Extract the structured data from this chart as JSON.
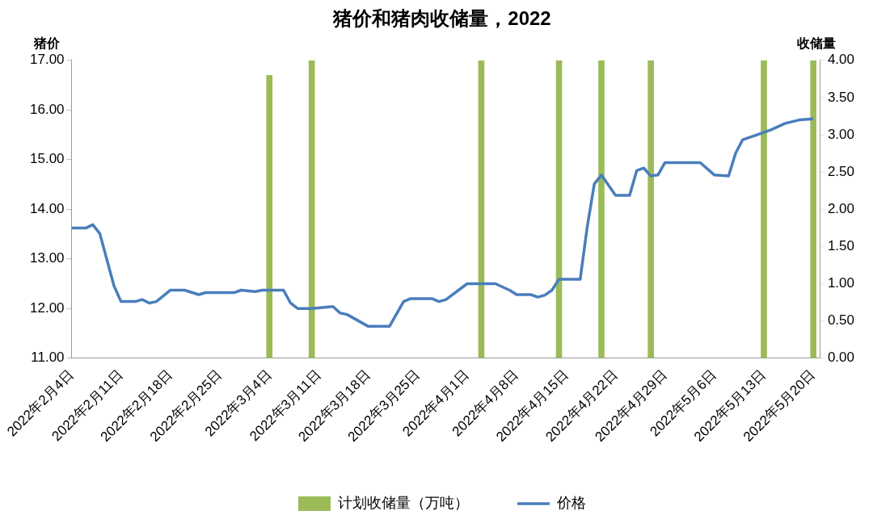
{
  "chart_data": {
    "type": "line",
    "title": "猪价和猪肉收储量，2022",
    "ylabel": "猪价",
    "y2label": "收储量",
    "xlim": [
      "2022-02-04",
      "2022-05-21"
    ],
    "xticks": [
      {
        "value": "2022-02-04",
        "label": "2022年2月4日"
      },
      {
        "value": "2022-02-11",
        "label": "2022年2月11日"
      },
      {
        "value": "2022-02-18",
        "label": "2022年2月18日"
      },
      {
        "value": "2022-02-25",
        "label": "2022年2月25日"
      },
      {
        "value": "2022-03-04",
        "label": "2022年3月4日"
      },
      {
        "value": "2022-03-11",
        "label": "2022年3月11日"
      },
      {
        "value": "2022-03-18",
        "label": "2022年3月18日"
      },
      {
        "value": "2022-03-25",
        "label": "2022年3月25日"
      },
      {
        "value": "2022-04-01",
        "label": "2022年4月1日"
      },
      {
        "value": "2022-04-08",
        "label": "2022年4月8日"
      },
      {
        "value": "2022-04-15",
        "label": "2022年4月15日"
      },
      {
        "value": "2022-04-22",
        "label": "2022年4月22日"
      },
      {
        "value": "2022-04-29",
        "label": "2022年4月29日"
      },
      {
        "value": "2022-05-06",
        "label": "2022年5月6日"
      },
      {
        "value": "2022-05-13",
        "label": "2022年5月13日"
      },
      {
        "value": "2022-05-20",
        "label": "2022年5月20日"
      }
    ],
    "ylim": [
      11,
      17
    ],
    "yticks": [
      {
        "value": 11,
        "label": "11.00"
      },
      {
        "value": 12,
        "label": "12.00"
      },
      {
        "value": 13,
        "label": "13.00"
      },
      {
        "value": 14,
        "label": "14.00"
      },
      {
        "value": 15,
        "label": "15.00"
      },
      {
        "value": 16,
        "label": "16.00"
      },
      {
        "value": 17,
        "label": "17.00"
      }
    ],
    "y2lim": [
      0,
      4
    ],
    "y2ticks": [
      {
        "value": 0,
        "label": "0.00"
      },
      {
        "value": 0.5,
        "label": "0.50"
      },
      {
        "value": 1,
        "label": "1.00"
      },
      {
        "value": 1.5,
        "label": "1.50"
      },
      {
        "value": 2,
        "label": "2.00"
      },
      {
        "value": 2.5,
        "label": "2.50"
      },
      {
        "value": 3,
        "label": "3.00"
      },
      {
        "value": 3.5,
        "label": "3.50"
      },
      {
        "value": 4,
        "label": "4.00"
      }
    ],
    "grid": false,
    "legend": "bottom",
    "marker": "none",
    "line_style": "solid",
    "series": [
      {
        "name": "计划收储量（万吨）",
        "type": "bar",
        "axis": "y2",
        "color": "#9bbb59",
        "x": [
          "2022-03-04",
          "2022-03-10",
          "2022-04-03",
          "2022-04-14",
          "2022-04-20",
          "2022-04-27",
          "2022-05-13",
          "2022-05-20"
        ],
        "values": [
          3.8,
          4,
          4,
          4,
          4,
          4,
          4,
          4
        ]
      },
      {
        "name": "价格",
        "color": "#4a7ebb",
        "x": [
          "2022-02-04",
          "2022-02-06",
          "2022-02-07",
          "2022-02-08",
          "2022-02-10",
          "2022-02-11",
          "2022-02-13",
          "2022-02-14",
          "2022-02-15",
          "2022-02-16",
          "2022-02-18",
          "2022-02-20",
          "2022-02-22",
          "2022-02-23",
          "2022-02-27",
          "2022-02-28",
          "2022-03-02",
          "2022-03-03",
          "2022-03-06",
          "2022-03-07",
          "2022-03-08",
          "2022-03-10",
          "2022-03-13",
          "2022-03-14",
          "2022-03-15",
          "2022-03-18",
          "2022-03-21",
          "2022-03-23",
          "2022-03-24",
          "2022-03-27",
          "2022-03-28",
          "2022-03-29",
          "2022-04-01",
          "2022-04-05",
          "2022-04-07",
          "2022-04-08",
          "2022-04-10",
          "2022-04-11",
          "2022-04-12",
          "2022-04-13",
          "2022-04-14",
          "2022-04-17",
          "2022-04-18",
          "2022-04-19",
          "2022-04-20",
          "2022-04-22",
          "2022-04-24",
          "2022-04-25",
          "2022-04-26",
          "2022-04-27",
          "2022-04-28",
          "2022-04-29",
          "2022-05-04",
          "2022-05-06",
          "2022-05-08",
          "2022-05-09",
          "2022-05-10",
          "2022-05-12",
          "2022-05-14",
          "2022-05-16",
          "2022-05-18",
          "2022-05-20"
        ],
        "values": [
          13.62,
          13.62,
          13.69,
          13.51,
          12.46,
          12.14,
          12.14,
          12.18,
          12.11,
          12.14,
          12.37,
          12.37,
          12.28,
          12.32,
          12.32,
          12.37,
          12.34,
          12.37,
          12.37,
          12.11,
          12.0,
          12.0,
          12.04,
          11.91,
          11.88,
          11.64,
          11.64,
          12.14,
          12.2,
          12.2,
          12.14,
          12.18,
          12.5,
          12.5,
          12.37,
          12.28,
          12.28,
          12.23,
          12.27,
          12.37,
          12.59,
          12.59,
          13.65,
          14.51,
          14.69,
          14.28,
          14.28,
          14.78,
          14.83,
          14.67,
          14.69,
          14.94,
          14.94,
          14.69,
          14.67,
          15.13,
          15.4,
          15.5,
          15.6,
          15.73,
          15.8,
          15.82
        ]
      }
    ]
  }
}
